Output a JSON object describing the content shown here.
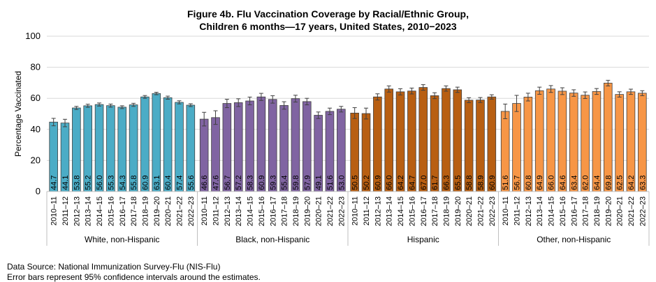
{
  "chart_data": {
    "type": "bar",
    "title": [
      "Figure 4b. Flu Vaccination Coverage by Racial/Ethnic Group,",
      "Children 6 months—17 years, United States, 2010−2023"
    ],
    "ylabel": "Percentage Vaccinated",
    "xlabel": "",
    "ylim": [
      0,
      100
    ],
    "yticks": [
      0,
      20,
      40,
      60,
      80,
      100
    ],
    "grid": true,
    "seasons": [
      "2010–11",
      "2011–12",
      "2012–13",
      "2013–14",
      "2014–15",
      "2015–16",
      "2016–17",
      "2017–18",
      "2018–19",
      "2019–20",
      "2020–21",
      "2021–22",
      "2022–23"
    ],
    "groups": [
      {
        "name": "White, non-Hispanic",
        "color": "#4BACC6",
        "values": [
          44.7,
          44.1,
          53.8,
          55.2,
          56.0,
          55.3,
          54.3,
          55.8,
          60.9,
          63.1,
          60.4,
          57.4,
          55.6
        ],
        "ci_lower": [
          42.3,
          41.7,
          52.8,
          54.2,
          55.0,
          54.3,
          53.4,
          54.8,
          60.0,
          62.3,
          59.4,
          56.4,
          54.7
        ],
        "ci_upper": [
          47.1,
          46.5,
          54.8,
          56.2,
          57.0,
          56.3,
          55.2,
          56.8,
          61.8,
          63.9,
          61.4,
          58.4,
          56.5
        ]
      },
      {
        "name": "Black, non-Hispanic",
        "color": "#8064A2",
        "values": [
          46.6,
          47.6,
          56.7,
          57.2,
          58.3,
          60.9,
          59.3,
          55.4,
          59.8,
          57.9,
          49.1,
          51.6,
          53.0
        ],
        "ci_lower": [
          42.2,
          43.2,
          54.0,
          54.7,
          55.8,
          58.6,
          56.9,
          53.0,
          57.6,
          55.8,
          47.0,
          49.5,
          51.2
        ],
        "ci_upper": [
          51.0,
          52.0,
          59.4,
          59.7,
          60.8,
          63.2,
          61.7,
          57.8,
          62.0,
          60.0,
          51.2,
          53.7,
          54.8
        ]
      },
      {
        "name": "Hispanic",
        "color": "#B85F12",
        "values": [
          50.5,
          50.2,
          60.9,
          66.0,
          64.2,
          64.7,
          67.0,
          61.7,
          66.3,
          65.5,
          58.8,
          58.9,
          60.9
        ],
        "ci_lower": [
          47.0,
          46.7,
          58.9,
          64.0,
          62.2,
          62.8,
          65.2,
          59.8,
          64.6,
          63.8,
          57.2,
          57.3,
          59.5
        ],
        "ci_upper": [
          54.0,
          53.7,
          62.9,
          68.0,
          66.2,
          66.6,
          68.8,
          63.6,
          68.0,
          67.2,
          60.4,
          60.5,
          62.3
        ]
      },
      {
        "name": "Other, non-Hispanic",
        "color": "#F79646",
        "values": [
          51.6,
          56.7,
          60.8,
          64.9,
          66.0,
          64.6,
          63.4,
          62.0,
          64.4,
          69.8,
          62.5,
          64.2,
          63.3
        ],
        "ci_lower": [
          46.9,
          51.5,
          58.3,
          62.6,
          63.8,
          62.4,
          61.3,
          59.9,
          62.5,
          68.0,
          60.8,
          62.5,
          61.7
        ],
        "ci_upper": [
          56.3,
          61.9,
          63.3,
          67.2,
          68.2,
          66.8,
          65.5,
          64.1,
          66.3,
          71.6,
          64.2,
          65.9,
          64.9
        ]
      }
    ]
  },
  "footnotes": {
    "source": "Data Source: National Immunization Survey-Flu (NIS-Flu)",
    "error_bars": "Error bars represent 95% confidence intervals around the estimates."
  }
}
